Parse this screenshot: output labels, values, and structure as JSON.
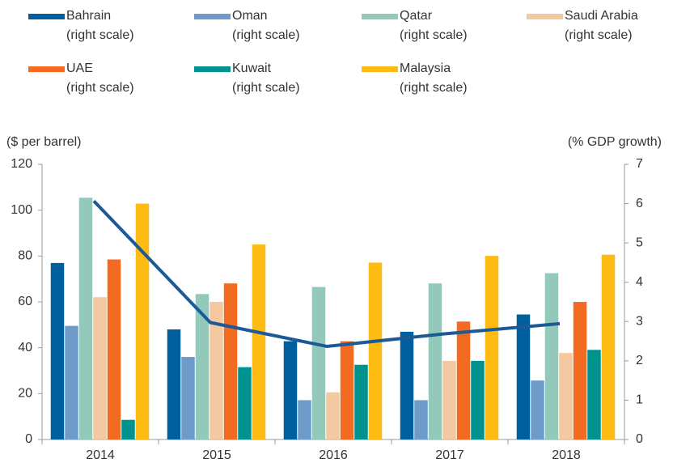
{
  "chart_data": {
    "type": "bar",
    "ylabel": "($ per barrel)",
    "y2label": "(% GDP growth)",
    "categories": [
      "2014",
      "2015",
      "2016",
      "2017",
      "2018"
    ],
    "ylim": [
      0,
      120
    ],
    "yticks": [
      0,
      20,
      40,
      60,
      80,
      100,
      120
    ],
    "y2lim": [
      0,
      7
    ],
    "y2ticks": [
      0,
      1,
      2,
      3,
      4,
      5,
      6,
      7
    ],
    "legend": "top",
    "series": [
      {
        "name": "Bahrain\n(right scale)",
        "color": "#005f9e",
        "axis": "y2",
        "values": [
          4.49,
          2.8,
          2.5,
          2.74,
          3.18
        ]
      },
      {
        "name": "Oman\n(right scale)",
        "color": "#6f9bcb",
        "axis": "y2",
        "values": [
          2.89,
          2.1,
          1.0,
          1.0,
          1.5
        ]
      },
      {
        "name": "Qatar\n(right scale)",
        "color": "#93c9bb",
        "axis": "y2",
        "values": [
          6.15,
          3.7,
          3.88,
          3.97,
          4.23
        ]
      },
      {
        "name": "Saudi Arabia\n(right scale)",
        "color": "#f5c9a0",
        "axis": "y2",
        "values": [
          3.62,
          3.5,
          1.2,
          2.0,
          2.2
        ]
      },
      {
        "name": "UAE\n(right scale)",
        "color": "#f26b21",
        "axis": "y2",
        "values": [
          4.58,
          3.97,
          2.5,
          3.0,
          3.5
        ]
      },
      {
        "name": "Kuwait\n(right scale)",
        "color": "#00928f",
        "axis": "y2",
        "values": [
          0.5,
          1.84,
          1.9,
          2.0,
          2.28
        ]
      },
      {
        "name": "Malaysia\n(right scale)",
        "color": "#fdbb13",
        "axis": "y2",
        "values": [
          6.0,
          4.96,
          4.5,
          4.67,
          4.7
        ]
      }
    ],
    "line": {
      "type": "line",
      "color": "#1b5a96",
      "values": [
        104,
        51,
        40.6,
        46,
        50.5
      ]
    }
  }
}
